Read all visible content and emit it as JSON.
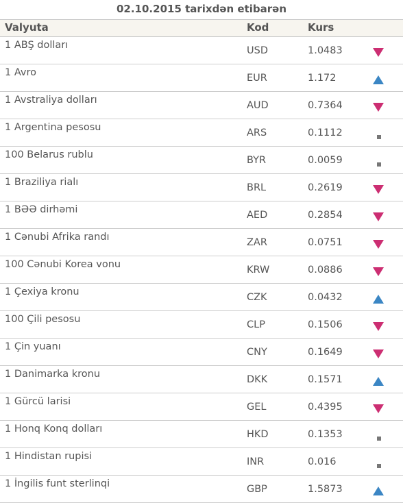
{
  "caption": "02.10.2015 tarixdən etibarən",
  "headers": {
    "name": "Valyuta",
    "code": "Kod",
    "rate": "Kurs"
  },
  "trend_colors": {
    "down": "#cc2e72",
    "up": "#3b86c4",
    "same": "#777777"
  },
  "rows": [
    {
      "name": "1 ABŞ dolları",
      "code": "USD",
      "rate": "1.0483",
      "trend": "down"
    },
    {
      "name": "1 Avro",
      "code": "EUR",
      "rate": "1.172",
      "trend": "up"
    },
    {
      "name": "1 Avstraliya dolları",
      "code": "AUD",
      "rate": "0.7364",
      "trend": "down"
    },
    {
      "name": "1 Argentina pesosu",
      "code": "ARS",
      "rate": "0.1112",
      "trend": "same"
    },
    {
      "name": "100 Belarus rublu",
      "code": "BYR",
      "rate": "0.0059",
      "trend": "same"
    },
    {
      "name": "1 Braziliya rialı",
      "code": "BRL",
      "rate": "0.2619",
      "trend": "down"
    },
    {
      "name": "1 BƏƏ dirhəmi",
      "code": "AED",
      "rate": "0.2854",
      "trend": "down"
    },
    {
      "name": "1 Cənubi Afrika randı",
      "code": "ZAR",
      "rate": "0.0751",
      "trend": "down"
    },
    {
      "name": "100 Cənubi Korea vonu",
      "code": "KRW",
      "rate": "0.0886",
      "trend": "down"
    },
    {
      "name": "1 Çexiya kronu",
      "code": "CZK",
      "rate": "0.0432",
      "trend": "up"
    },
    {
      "name": "100 Çili pesosu",
      "code": "CLP",
      "rate": "0.1506",
      "trend": "down"
    },
    {
      "name": "1 Çin yuanı",
      "code": "CNY",
      "rate": "0.1649",
      "trend": "down"
    },
    {
      "name": "1 Danimarka kronu",
      "code": "DKK",
      "rate": "0.1571",
      "trend": "up"
    },
    {
      "name": "1 Gürcü larisi",
      "code": "GEL",
      "rate": "0.4395",
      "trend": "down"
    },
    {
      "name": "1 Honq Konq dolları",
      "code": "HKD",
      "rate": "0.1353",
      "trend": "same"
    },
    {
      "name": "1 Hindistan rupisi",
      "code": "INR",
      "rate": "0.016",
      "trend": "same"
    },
    {
      "name": "1 İngilis funt sterlinqi",
      "code": "GBP",
      "rate": "1.5873",
      "trend": "up"
    }
  ]
}
